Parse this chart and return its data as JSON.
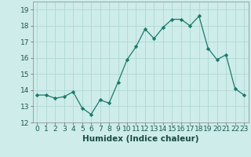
{
  "x": [
    0,
    1,
    2,
    3,
    4,
    5,
    6,
    7,
    8,
    9,
    10,
    11,
    12,
    13,
    14,
    15,
    16,
    17,
    18,
    19,
    20,
    21,
    22,
    23
  ],
  "y": [
    13.7,
    13.7,
    13.5,
    13.6,
    13.9,
    12.9,
    12.5,
    13.4,
    13.2,
    14.5,
    15.9,
    16.7,
    17.8,
    17.2,
    17.9,
    18.4,
    18.4,
    18.0,
    18.6,
    16.6,
    15.9,
    16.2,
    14.1,
    13.7
  ],
  "xlabel": "Humidex (Indice chaleur)",
  "ylim": [
    12,
    19.5
  ],
  "yticks": [
    12,
    13,
    14,
    15,
    16,
    17,
    18,
    19
  ],
  "line_color": "#1a7a6a",
  "marker_color": "#1a7a6a",
  "bg_color": "#cdecea",
  "grid_color": "#b0d8d4",
  "tick_label_fontsize": 6.5,
  "xlabel_fontsize": 7.5
}
